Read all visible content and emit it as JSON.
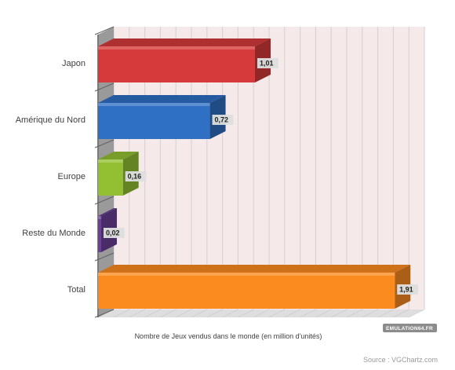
{
  "chart_data": {
    "type": "bar",
    "orientation": "horizontal",
    "categories": [
      "Japon",
      "Amérique du Nord",
      "Europe",
      "Reste du Monde",
      "Total"
    ],
    "values": [
      1.01,
      0.72,
      0.16,
      0.02,
      1.91
    ],
    "value_labels": [
      "1,01",
      "0,72",
      "0,16",
      "0,02",
      "1,91"
    ],
    "colors": [
      "#d63a3a",
      "#2f6fc4",
      "#93c032",
      "#6a3f97",
      "#fb8a1f"
    ],
    "xlabel": "Nombre de Jeux vendus dans le monde (en million d'unités)",
    "ylabel": "",
    "title": "",
    "xlim": [
      0,
      2
    ],
    "grid": true,
    "legend": "none"
  },
  "source": "Source : VGChartz.com",
  "watermark": "EMULATION64.FR",
  "colors": {
    "plot_background": "#f6e9e9",
    "grid": "#d7cfcf",
    "wall": "#9a9a9a",
    "floor": "#b5b5b5"
  }
}
